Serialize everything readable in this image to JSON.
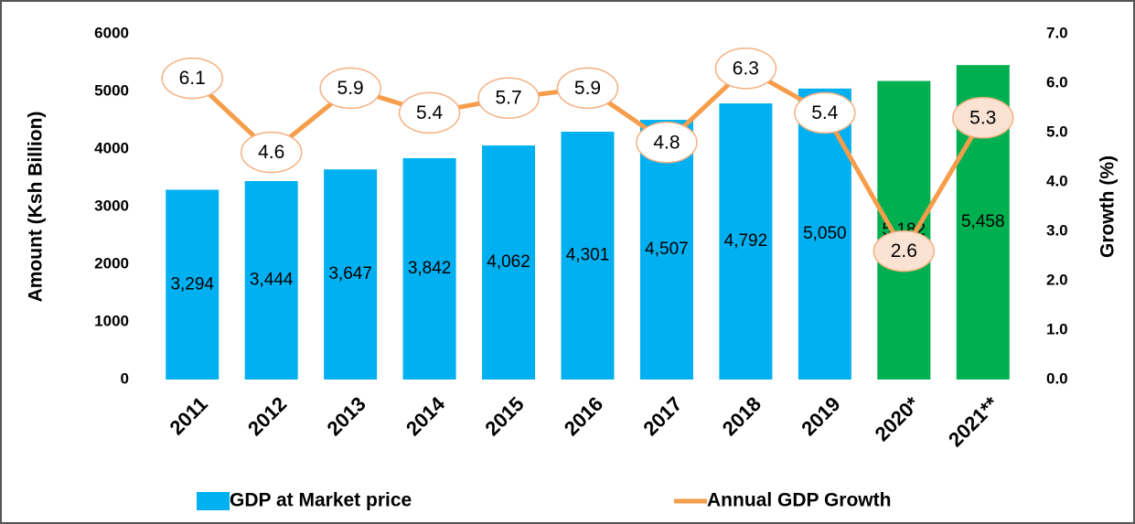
{
  "chart_data": {
    "type": "bar",
    "categories": [
      "2011",
      "2012",
      "2013",
      "2014",
      "2015",
      "2016",
      "2017",
      "2018",
      "2019",
      "2020*",
      "2021**"
    ],
    "series": [
      {
        "name": "GDP at Market price",
        "type": "bar",
        "color": "#00b0f0",
        "colors": [
          "#00b0f0",
          "#00b0f0",
          "#00b0f0",
          "#00b0f0",
          "#00b0f0",
          "#00b0f0",
          "#00b0f0",
          "#00b0f0",
          "#00b0f0",
          "#00b050",
          "#00b050"
        ],
        "values": [
          3294,
          3444,
          3647,
          3842,
          4062,
          4301,
          4507,
          4792,
          5050,
          5182,
          5458
        ],
        "value_labels": [
          "3,294",
          "3,444",
          "3,647",
          "3,842",
          "4,062",
          "4,301",
          "4,507",
          "4,792",
          "5,050",
          "5,182",
          "5,458"
        ]
      },
      {
        "name": "Annual GDP Growth",
        "type": "line",
        "axis": "y2",
        "color": "#f59d4a",
        "values": [
          6.1,
          4.6,
          5.9,
          5.4,
          5.7,
          5.9,
          4.8,
          6.3,
          5.4,
          2.6,
          5.3
        ]
      }
    ],
    "y_label": "Amount (Ksh Billion)",
    "y2_label": "Growth (%)",
    "ylim": [
      0,
      6000
    ],
    "yticks": [
      0,
      1000,
      2000,
      3000,
      4000,
      5000,
      6000
    ],
    "y2lim": [
      0,
      7
    ],
    "y2ticks": [
      {
        "value": 0,
        "label": "0.0"
      },
      {
        "value": 1,
        "label": "1.0"
      },
      {
        "value": 2,
        "label": "2.0"
      },
      {
        "value": 3,
        "label": "3.0"
      },
      {
        "value": 4,
        "label": "4.0"
      },
      {
        "value": 5,
        "label": "5.0"
      },
      {
        "value": 6,
        "label": "6.0"
      },
      {
        "value": 7,
        "label": "7.0"
      }
    ],
    "grid": false,
    "legend": "bottom"
  }
}
